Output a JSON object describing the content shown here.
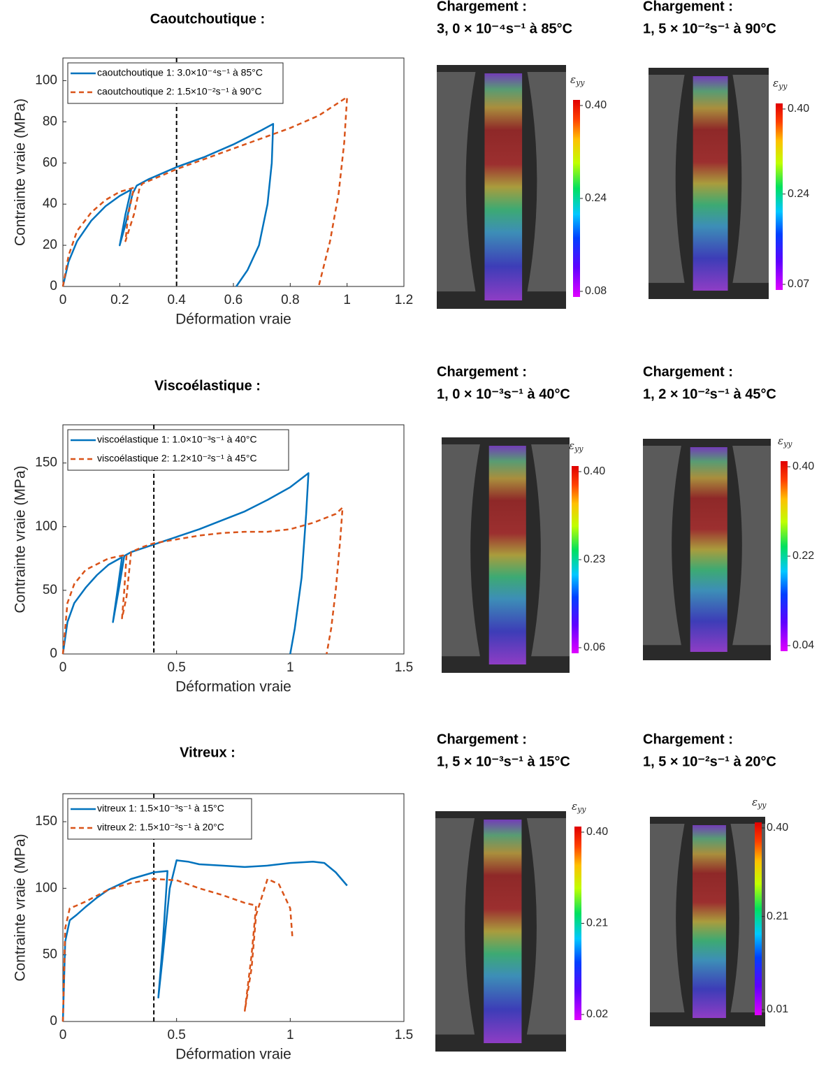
{
  "chart_data": [
    {
      "type": "line",
      "title": "Caoutchoutique :",
      "xlabel": "Déformation vraie",
      "ylabel": "Contrainte vraie (MPa)",
      "xlim": [
        0,
        1.2
      ],
      "ylim": [
        0,
        111
      ],
      "xticks": [
        0,
        0.2,
        0.4,
        0.6,
        0.8,
        1,
        1.2
      ],
      "yticks": [
        0,
        20,
        40,
        60,
        80,
        100
      ],
      "vline": 0.4,
      "legend": "upper left",
      "series": [
        {
          "name": "caoutchoutique 1: 3.0×10⁻⁴s⁻¹ à 85°C",
          "color": "#0072bd",
          "dash": false,
          "x": [
            0,
            0.02,
            0.05,
            0.1,
            0.15,
            0.2,
            0.24,
            0.22,
            0.2,
            0.22,
            0.245,
            0.26,
            0.3,
            0.4,
            0.5,
            0.6,
            0.7,
            0.74,
            0.735,
            0.72,
            0.69,
            0.65,
            0.61
          ],
          "values": [
            0,
            12,
            22,
            32,
            39,
            44,
            47,
            35,
            20,
            30,
            45,
            49,
            52,
            58,
            63,
            69,
            76,
            79,
            60,
            40,
            20,
            8,
            0
          ]
        },
        {
          "name": "caoutchoutique 2: 1.5×10⁻²s⁻¹ à 90°C",
          "color": "#d95319",
          "dash": true,
          "x": [
            0,
            0.02,
            0.05,
            0.1,
            0.15,
            0.2,
            0.25,
            0.23,
            0.22,
            0.25,
            0.27,
            0.28,
            0.35,
            0.4,
            0.5,
            0.6,
            0.7,
            0.8,
            0.9,
            1.0,
            0.99,
            0.97,
            0.94,
            0.9
          ],
          "values": [
            0,
            15,
            27,
            36,
            42,
            46,
            48,
            35,
            22,
            35,
            48,
            50,
            54,
            57,
            62,
            67,
            72,
            77,
            83,
            92,
            70,
            45,
            22,
            0
          ]
        }
      ]
    },
    {
      "type": "line",
      "title": "Viscoélastique :",
      "xlabel": "Déformation vraie",
      "ylabel": "Contrainte vraie (MPa)",
      "xlim": [
        0,
        1.5
      ],
      "ylim": [
        0,
        180
      ],
      "xticks": [
        0,
        0.5,
        1,
        1.5
      ],
      "yticks": [
        0,
        50,
        100,
        150
      ],
      "vline": 0.4,
      "legend": "upper left",
      "series": [
        {
          "name": "viscoélastique 1: 1.0×10⁻³s⁻¹ à 40°C",
          "color": "#0072bd",
          "dash": false,
          "x": [
            0,
            0.02,
            0.05,
            0.1,
            0.15,
            0.2,
            0.26,
            0.24,
            0.22,
            0.25,
            0.27,
            0.3,
            0.4,
            0.5,
            0.6,
            0.7,
            0.8,
            0.9,
            1.0,
            1.08,
            1.07,
            1.05,
            1.02,
            1.0
          ],
          "values": [
            0,
            25,
            40,
            52,
            62,
            70,
            76,
            50,
            25,
            55,
            77,
            80,
            86,
            92,
            98,
            105,
            112,
            121,
            131,
            142,
            110,
            60,
            20,
            0
          ]
        },
        {
          "name": "viscoélastique 2: 1.2×10⁻²s⁻¹ à 45°C",
          "color": "#d95319",
          "dash": true,
          "x": [
            0,
            0.02,
            0.05,
            0.1,
            0.2,
            0.28,
            0.27,
            0.26,
            0.28,
            0.3,
            0.35,
            0.4,
            0.5,
            0.6,
            0.7,
            0.8,
            0.9,
            1.0,
            1.1,
            1.2,
            1.23,
            1.22,
            1.2,
            1.18,
            1.16
          ],
          "values": [
            0,
            40,
            55,
            66,
            75,
            78,
            50,
            28,
            45,
            80,
            84,
            87,
            90,
            93,
            95,
            96,
            96,
            98,
            103,
            110,
            115,
            90,
            50,
            20,
            0
          ]
        }
      ]
    },
    {
      "type": "line",
      "title": "Vitreux :",
      "xlabel": "Déformation vraie",
      "ylabel": "Contrainte vraie (MPa)",
      "xlim": [
        0,
        1.5
      ],
      "ylim": [
        0,
        171
      ],
      "xticks": [
        0,
        0.5,
        1,
        1.5
      ],
      "yticks": [
        0,
        50,
        100,
        150
      ],
      "vline": 0.4,
      "legend": "upper left",
      "series": [
        {
          "name": "vitreux 1: 1.5×10⁻³s⁻¹ à 15°C",
          "color": "#0072bd",
          "dash": false,
          "x": [
            0,
            0.01,
            0.03,
            0.06,
            0.1,
            0.15,
            0.2,
            0.3,
            0.4,
            0.46,
            0.44,
            0.42,
            0.44,
            0.47,
            0.5,
            0.55,
            0.6,
            0.7,
            0.8,
            0.9,
            1.0,
            1.1,
            1.15,
            1.2,
            1.25
          ],
          "values": [
            0,
            60,
            76,
            80,
            86,
            93,
            99,
            107,
            112,
            113,
            60,
            18,
            50,
            100,
            121,
            120,
            118,
            117,
            116,
            117,
            119,
            120,
            119,
            112,
            102
          ]
        },
        {
          "name": "vitreux 2: 1.5×10⁻²s⁻¹ à 20°C",
          "color": "#d95319",
          "dash": true,
          "x": [
            0,
            0.01,
            0.03,
            0.06,
            0.1,
            0.2,
            0.3,
            0.4,
            0.5,
            0.6,
            0.7,
            0.8,
            0.85,
            0.83,
            0.8,
            0.83,
            0.85,
            0.9,
            0.95,
            1.0,
            1.01
          ],
          "values": [
            0,
            70,
            85,
            87,
            90,
            99,
            104,
            107,
            106,
            100,
            95,
            89,
            87,
            50,
            8,
            40,
            80,
            107,
            103,
            85,
            62
          ]
        }
      ]
    }
  ],
  "images": [
    {
      "title": "Chargement :",
      "subtitle": "3, 0 × 10⁻⁴s⁻¹ à 85°C",
      "colorbar": {
        "symbol": "ε",
        "sub": "yy",
        "ticks": [
          {
            "value": 0.4,
            "label": "0.40"
          },
          0.24,
          0.08
        ]
      }
    },
    {
      "title": "Chargement :",
      "subtitle": "1, 5 × 10⁻²s⁻¹ à 90°C",
      "colorbar": {
        "symbol": "ε",
        "sub": "yy",
        "ticks": [
          {
            "value": 0.4,
            "label": "0.40"
          },
          0.24,
          0.07
        ]
      }
    },
    {
      "title": "Chargement :",
      "subtitle": "1, 0 × 10⁻³s⁻¹ à 40°C",
      "colorbar": {
        "symbol": "ε",
        "sub": "yy",
        "ticks": [
          {
            "value": 0.4,
            "label": "0.40"
          },
          0.23,
          0.06
        ]
      }
    },
    {
      "title": "Chargement :",
      "subtitle": "1, 2 × 10⁻²s⁻¹ à 45°C",
      "colorbar": {
        "symbol": "ε",
        "sub": "yy",
        "ticks": [
          {
            "value": 0.4,
            "label": "0.40"
          },
          0.22,
          0.04
        ]
      }
    },
    {
      "title": "Chargement :",
      "subtitle": "1, 5 × 10⁻³s⁻¹ à 15°C",
      "colorbar": {
        "symbol": "ε",
        "sub": "yy",
        "ticks": [
          {
            "value": 0.4,
            "label": "0.40"
          },
          0.21,
          0.02
        ]
      }
    },
    {
      "title": "Chargement :",
      "subtitle": "1, 5 × 10⁻²s⁻¹ à 20°C",
      "colorbar": {
        "symbol": "ε",
        "sub": "yy",
        "ticks": [
          {
            "value": 0.4,
            "label": "0.40"
          },
          0.21,
          0.01
        ]
      }
    }
  ]
}
